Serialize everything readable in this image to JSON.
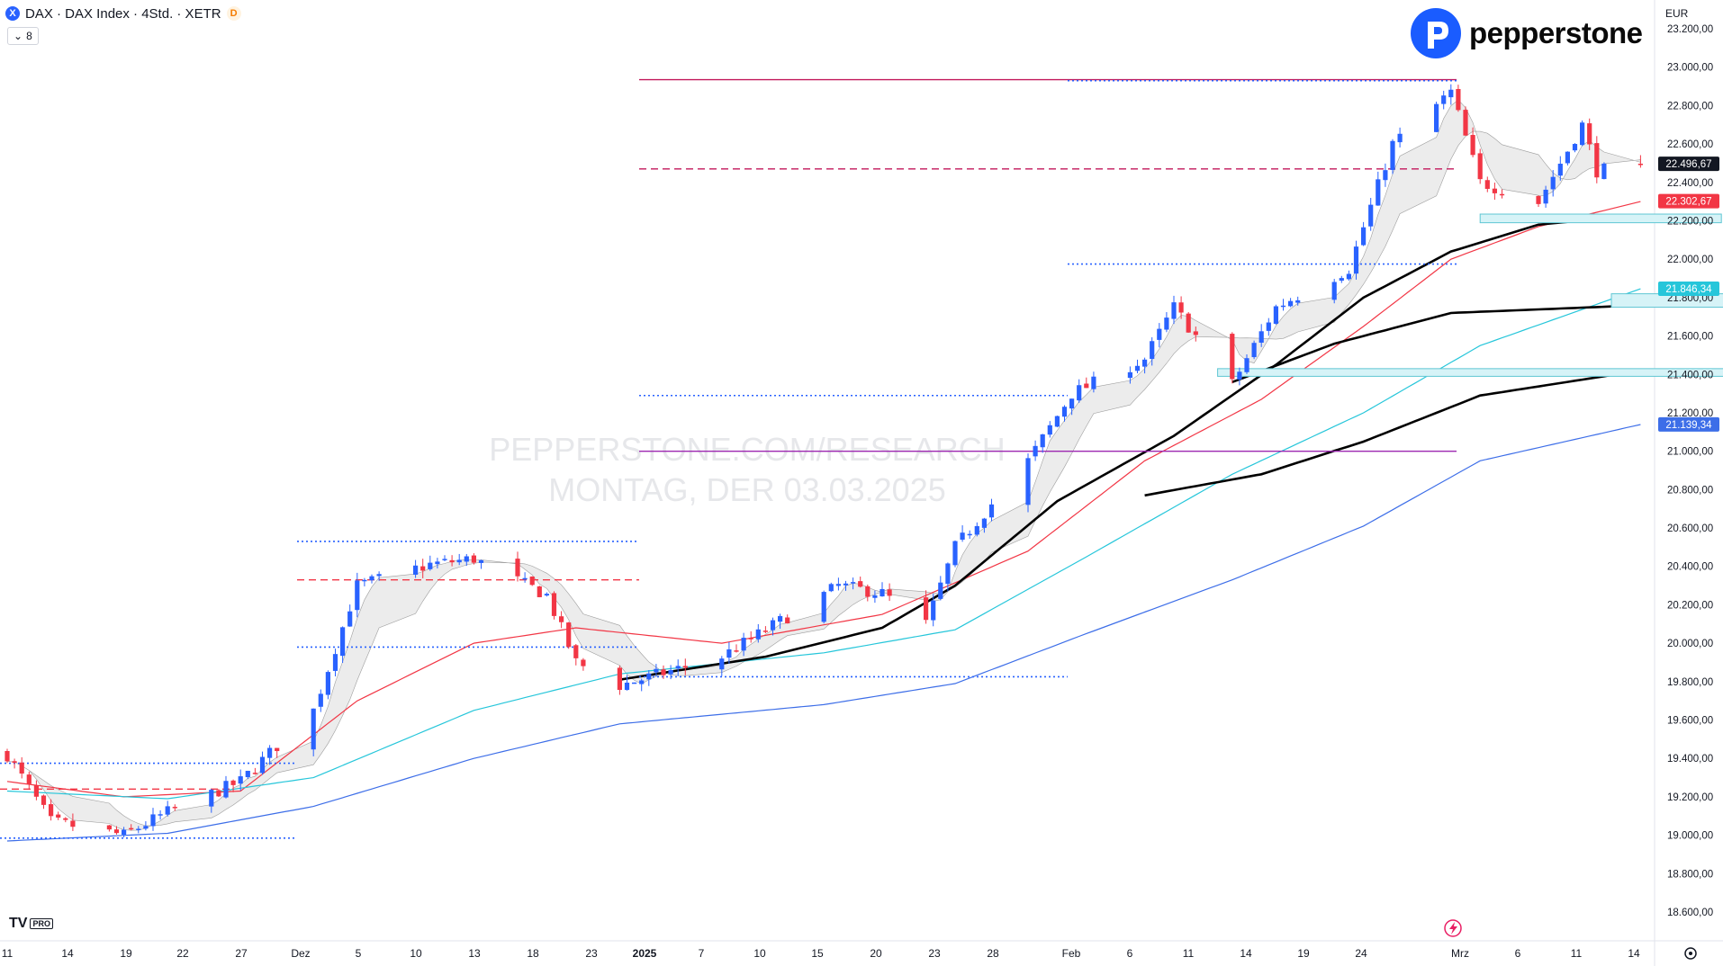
{
  "header": {
    "symbol_icon": "X",
    "title": "DAX · DAX Index · 4Std. · XETR",
    "badge": "D",
    "indicator_count": "8"
  },
  "brand": {
    "name": "pepperstone",
    "logo_icon": "pepperstone-logo-icon"
  },
  "watermark": {
    "line1": "PEPPERSTONE.COM/RESEARCH",
    "line2": "MONTAG, DER 03.03.2025"
  },
  "footer": {
    "tv_logo": "TV",
    "tv_badge": "PRO"
  },
  "colors": {
    "up": "#2962ff",
    "down": "#f23645",
    "ema_red": "#f23645",
    "ema_cyan": "#26c6da",
    "ema_blue": "#3d6ee8",
    "ema_black": "#000000",
    "level_magenta": "#c2185b",
    "level_purple": "#9c27b0",
    "zone_fill": "#d6f3f7",
    "zone_stroke": "#5fc6d3",
    "ribbon": "#c8c8c8"
  },
  "chart_data": {
    "type": "candlestick",
    "currency": "EUR",
    "timeframe": "4Std.",
    "ylim": [
      18450,
      23350
    ],
    "y_ticks": [
      {
        "v": 23200,
        "label": "23.200,00"
      },
      {
        "v": 23000,
        "label": "23.000,00"
      },
      {
        "v": 22800,
        "label": "22.800,00"
      },
      {
        "v": 22600,
        "label": "22.600,00"
      },
      {
        "v": 22400,
        "label": "22.400,00"
      },
      {
        "v": 22200,
        "label": "22.200,00"
      },
      {
        "v": 22000,
        "label": "22.000,00"
      },
      {
        "v": 21800,
        "label": "21.800,00"
      },
      {
        "v": 21600,
        "label": "21.600,00"
      },
      {
        "v": 21400,
        "label": "21.400,00"
      },
      {
        "v": 21200,
        "label": "21.200,00"
      },
      {
        "v": 21000,
        "label": "21.000,00"
      },
      {
        "v": 20800,
        "label": "20.800,00"
      },
      {
        "v": 20600,
        "label": "20.600,00"
      },
      {
        "v": 20400,
        "label": "20.400,00"
      },
      {
        "v": 20200,
        "label": "20.200,00"
      },
      {
        "v": 20000,
        "label": "20.000,00"
      },
      {
        "v": 19800,
        "label": "19.800,00"
      },
      {
        "v": 19600,
        "label": "19.600,00"
      },
      {
        "v": 19400,
        "label": "19.400,00"
      },
      {
        "v": 19200,
        "label": "19.200,00"
      },
      {
        "v": 19000,
        "label": "19.000,00"
      },
      {
        "v": 18800,
        "label": "18.800,00"
      },
      {
        "v": 18600,
        "label": "18.600,00"
      }
    ],
    "x_ticks": [
      {
        "label": "11",
        "bold": false
      },
      {
        "label": "14",
        "bold": false
      },
      {
        "label": "19",
        "bold": false
      },
      {
        "label": "22",
        "bold": false
      },
      {
        "label": "27",
        "bold": false
      },
      {
        "label": "Dez",
        "bold": false
      },
      {
        "label": "5",
        "bold": false
      },
      {
        "label": "10",
        "bold": false
      },
      {
        "label": "13",
        "bold": false
      },
      {
        "label": "18",
        "bold": false
      },
      {
        "label": "23",
        "bold": false
      },
      {
        "label": "2025",
        "bold": true
      },
      {
        "label": "7",
        "bold": false
      },
      {
        "label": "10",
        "bold": false
      },
      {
        "label": "15",
        "bold": false
      },
      {
        "label": "20",
        "bold": false
      },
      {
        "label": "23",
        "bold": false
      },
      {
        "label": "28",
        "bold": false
      },
      {
        "label": "Feb",
        "bold": false
      },
      {
        "label": "6",
        "bold": false
      },
      {
        "label": "11",
        "bold": false
      },
      {
        "label": "14",
        "bold": false
      },
      {
        "label": "19",
        "bold": false
      },
      {
        "label": "24",
        "bold": false
      },
      {
        "label": "Mrz",
        "bold": false
      },
      {
        "label": "6",
        "bold": false
      },
      {
        "label": "11",
        "bold": false
      },
      {
        "label": "14",
        "bold": false
      }
    ],
    "price_labels": [
      {
        "v": 22496.67,
        "text": "22.496,67",
        "color": "#131722"
      },
      {
        "v": 22302.67,
        "text": "22.302,67",
        "color": "#f23645"
      },
      {
        "v": 21846.34,
        "text": "21.846,34",
        "color": "#26c6da"
      },
      {
        "v": 21139.34,
        "text": "21.139,34",
        "color": "#3d6ee8"
      }
    ],
    "horizontal_levels": [
      {
        "v": 22935,
        "style": "solid",
        "color": "#c2185b"
      },
      {
        "v": 22470,
        "style": "dashed",
        "color": "#c2185b"
      },
      {
        "v": 21000,
        "style": "solid",
        "color": "#9c27b0"
      },
      {
        "v": 22930,
        "style": "dotted",
        "color": "#2962ff"
      },
      {
        "v": 21975,
        "style": "dotted",
        "color": "#2962ff"
      },
      {
        "v": 21290,
        "style": "dotted",
        "color": "#2962ff"
      },
      {
        "v": 20530,
        "style": "dotted",
        "color": "#2962ff"
      },
      {
        "v": 19980,
        "style": "dotted",
        "color": "#2962ff"
      },
      {
        "v": 19825,
        "style": "dotted",
        "color": "#2962ff"
      },
      {
        "v": 19375,
        "style": "dotted",
        "color": "#2962ff"
      },
      {
        "v": 18985,
        "style": "dotted",
        "color": "#2962ff"
      },
      {
        "v": 20330,
        "style": "dashed",
        "color": "#f23645"
      },
      {
        "v": 19240,
        "style": "dashed",
        "color": "#f23645"
      }
    ],
    "zones": [
      {
        "low": 22190,
        "high": 22235
      },
      {
        "low": 21750,
        "high": 21820
      },
      {
        "low": 21390,
        "high": 21430
      }
    ],
    "anchors": [
      [
        "2024-11-11",
        19420
      ],
      [
        "2024-11-14",
        19070
      ],
      [
        "2024-11-19",
        19000
      ],
      [
        "2024-11-22",
        19120
      ],
      [
        "2024-11-27",
        19280
      ],
      [
        "2024-12-02",
        19650
      ],
      [
        "2024-12-05",
        20300
      ],
      [
        "2024-12-10",
        20410
      ],
      [
        "2024-12-13",
        20440
      ],
      [
        "2024-12-18",
        20250
      ],
      [
        "2024-12-20",
        19900
      ],
      [
        "2024-12-23",
        19780
      ],
      [
        "2024-12-30",
        19930
      ],
      [
        "2025-01-07",
        20300
      ],
      [
        "2025-01-10",
        20260
      ],
      [
        "2025-01-13",
        20100
      ],
      [
        "2025-01-15",
        20500
      ],
      [
        "2025-01-20",
        20950
      ],
      [
        "2025-01-23",
        21300
      ],
      [
        "2025-01-28",
        21480
      ],
      [
        "2025-01-30",
        21750
      ],
      [
        "2025-02-03",
        21350
      ],
      [
        "2025-02-06",
        21750
      ],
      [
        "2025-02-11",
        21950
      ],
      [
        "2025-02-14",
        22600
      ],
      [
        "2025-02-18",
        22870
      ],
      [
        "2025-02-20",
        22400
      ],
      [
        "2025-02-24",
        22300
      ],
      [
        "2025-02-27",
        22700
      ],
      [
        "2025-02-28",
        22460
      ],
      [
        "2025-03-03",
        22497
      ]
    ],
    "ema": [
      {
        "name": "",
        "color": "#f23645",
        "width": 1.2,
        "points": [
          [
            "2024-11-11",
            19280
          ],
          [
            "2024-11-19",
            19200
          ],
          [
            "2024-11-27",
            19230
          ],
          [
            "2024-12-05",
            19700
          ],
          [
            "2024-12-13",
            20000
          ],
          [
            "2024-12-20",
            20080
          ],
          [
            "2024-12-30",
            20000
          ],
          [
            "2025-01-10",
            20150
          ],
          [
            "2025-01-20",
            20480
          ],
          [
            "2025-01-28",
            20950
          ],
          [
            "2025-02-05",
            21270
          ],
          [
            "2025-02-12",
            21650
          ],
          [
            "2025-02-18",
            22000
          ],
          [
            "2025-02-24",
            22170
          ],
          [
            "2025-03-03",
            22300
          ]
        ]
      },
      {
        "name": "",
        "color": "#26c6da",
        "width": 1.2,
        "points": [
          [
            "2024-11-11",
            19230
          ],
          [
            "2024-11-22",
            19190
          ],
          [
            "2024-12-02",
            19300
          ],
          [
            "2024-12-13",
            19650
          ],
          [
            "2024-12-23",
            19840
          ],
          [
            "2025-01-06",
            19950
          ],
          [
            "2025-01-15",
            20070
          ],
          [
            "2025-01-24",
            20450
          ],
          [
            "2025-02-03",
            20880
          ],
          [
            "2025-02-12",
            21200
          ],
          [
            "2025-02-20",
            21550
          ],
          [
            "2025-03-03",
            21846
          ]
        ]
      },
      {
        "name": "",
        "color": "#3d6ee8",
        "width": 1.2,
        "points": [
          [
            "2024-11-11",
            18970
          ],
          [
            "2024-11-22",
            19010
          ],
          [
            "2024-12-02",
            19150
          ],
          [
            "2024-12-13",
            19400
          ],
          [
            "2024-12-23",
            19580
          ],
          [
            "2025-01-06",
            19680
          ],
          [
            "2025-01-15",
            19790
          ],
          [
            "2025-01-24",
            20050
          ],
          [
            "2025-02-03",
            20330
          ],
          [
            "2025-02-12",
            20610
          ],
          [
            "2025-02-20",
            20950
          ],
          [
            "2025-03-03",
            21139
          ]
        ]
      },
      {
        "name": "",
        "color": "#000000",
        "width": 2.6,
        "start": "2024-12-23",
        "points": [
          [
            "2024-12-23",
            19810
          ],
          [
            "2025-01-02",
            19930
          ],
          [
            "2025-01-10",
            20080
          ],
          [
            "2025-01-15",
            20300
          ],
          [
            "2025-01-22",
            20740
          ],
          [
            "2025-01-30",
            21080
          ],
          [
            "2025-02-06",
            21450
          ],
          [
            "2025-02-12",
            21800
          ],
          [
            "2025-02-18",
            22040
          ],
          [
            "2025-02-24",
            22180
          ],
          [
            "2025-03-03",
            22230
          ]
        ]
      },
      {
        "name": "",
        "color": "#000000",
        "width": 2.6,
        "start": "2025-02-03",
        "points": [
          [
            "2025-02-03",
            21360
          ],
          [
            "2025-02-10",
            21560
          ],
          [
            "2025-02-18",
            21720
          ],
          [
            "2025-03-03",
            21760
          ]
        ]
      },
      {
        "name": "",
        "color": "#000000",
        "width": 2.6,
        "start": "2025-01-28",
        "points": [
          [
            "2025-01-28",
            20770
          ],
          [
            "2025-02-05",
            20880
          ],
          [
            "2025-02-12",
            21050
          ],
          [
            "2025-02-20",
            21290
          ],
          [
            "2025-03-03",
            21420
          ]
        ]
      }
    ]
  }
}
